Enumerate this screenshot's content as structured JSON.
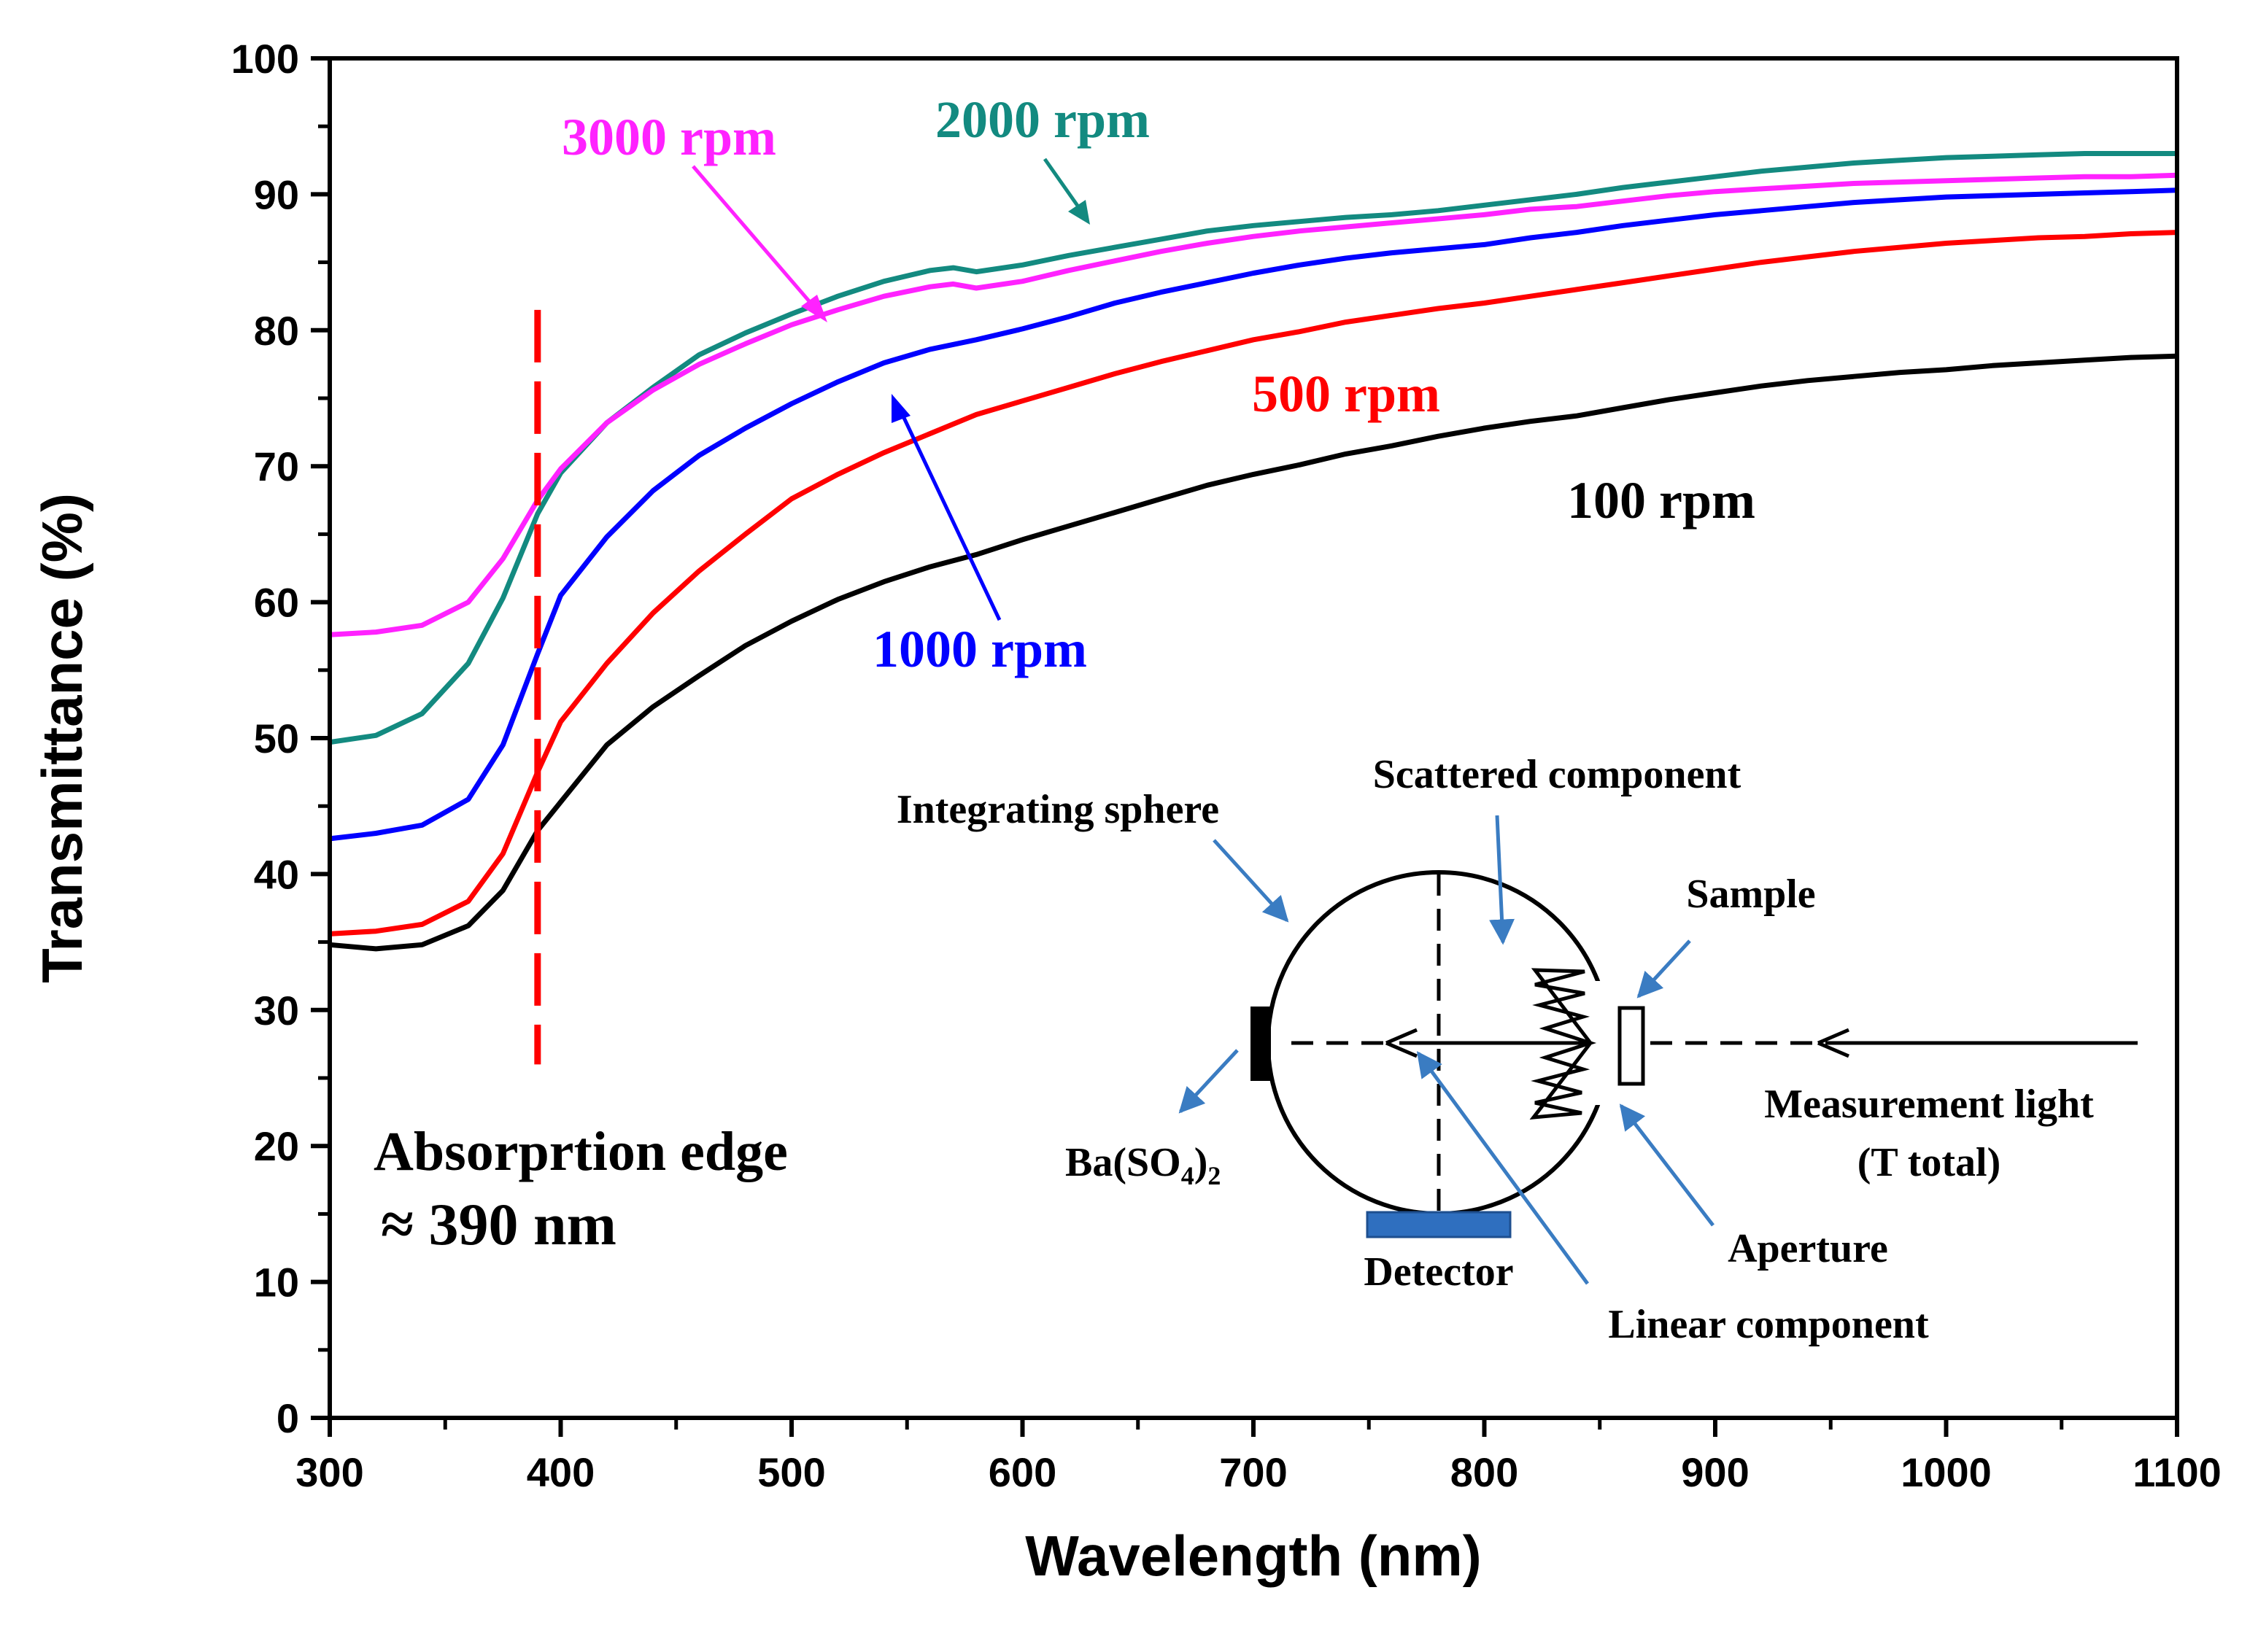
{
  "chart_data": {
    "type": "line",
    "title": "",
    "xlabel": "Wavelength (nm)",
    "ylabel": "Transmittance (%)",
    "xlim": [
      300,
      1100
    ],
    "ylim": [
      0,
      100
    ],
    "x_ticks": [
      "300",
      "400",
      "500",
      "600",
      "700",
      "800",
      "900",
      "1000",
      "1100"
    ],
    "y_ticks": [
      "0",
      "10",
      "20",
      "30",
      "40",
      "50",
      "60",
      "70",
      "80",
      "90",
      "100"
    ],
    "grid": false,
    "series": [
      {
        "name": "100 rpm",
        "color": "#000000",
        "points": [
          [
            300,
            34.8
          ],
          [
            320,
            34.5
          ],
          [
            340,
            34.8
          ],
          [
            360,
            36.2
          ],
          [
            375,
            38.8
          ],
          [
            390,
            43.2
          ],
          [
            400,
            45.3
          ],
          [
            420,
            49.5
          ],
          [
            440,
            52.3
          ],
          [
            460,
            54.6
          ],
          [
            480,
            56.8
          ],
          [
            500,
            58.6
          ],
          [
            520,
            60.2
          ],
          [
            540,
            61.5
          ],
          [
            560,
            62.6
          ],
          [
            580,
            63.5
          ],
          [
            600,
            64.6
          ],
          [
            620,
            65.6
          ],
          [
            640,
            66.6
          ],
          [
            660,
            67.6
          ],
          [
            680,
            68.6
          ],
          [
            700,
            69.4
          ],
          [
            720,
            70.1
          ],
          [
            740,
            70.9
          ],
          [
            760,
            71.5
          ],
          [
            780,
            72.2
          ],
          [
            800,
            72.8
          ],
          [
            820,
            73.3
          ],
          [
            840,
            73.7
          ],
          [
            860,
            74.3
          ],
          [
            880,
            74.9
          ],
          [
            900,
            75.4
          ],
          [
            920,
            75.9
          ],
          [
            940,
            76.3
          ],
          [
            960,
            76.6
          ],
          [
            980,
            76.9
          ],
          [
            1000,
            77.1
          ],
          [
            1020,
            77.4
          ],
          [
            1040,
            77.6
          ],
          [
            1060,
            77.8
          ],
          [
            1080,
            78.0
          ],
          [
            1100,
            78.1
          ]
        ]
      },
      {
        "name": "500 rpm",
        "color": "#ff0000",
        "points": [
          [
            300,
            35.6
          ],
          [
            320,
            35.8
          ],
          [
            340,
            36.3
          ],
          [
            360,
            38.0
          ],
          [
            375,
            41.5
          ],
          [
            390,
            47.5
          ],
          [
            400,
            51.2
          ],
          [
            420,
            55.5
          ],
          [
            440,
            59.2
          ],
          [
            460,
            62.3
          ],
          [
            480,
            65.0
          ],
          [
            500,
            67.6
          ],
          [
            520,
            69.4
          ],
          [
            540,
            71.0
          ],
          [
            560,
            72.4
          ],
          [
            580,
            73.8
          ],
          [
            600,
            74.8
          ],
          [
            620,
            75.8
          ],
          [
            640,
            76.8
          ],
          [
            660,
            77.7
          ],
          [
            680,
            78.5
          ],
          [
            700,
            79.3
          ],
          [
            720,
            79.9
          ],
          [
            740,
            80.6
          ],
          [
            760,
            81.1
          ],
          [
            780,
            81.6
          ],
          [
            800,
            82.0
          ],
          [
            820,
            82.5
          ],
          [
            840,
            83.0
          ],
          [
            860,
            83.5
          ],
          [
            880,
            84.0
          ],
          [
            900,
            84.5
          ],
          [
            920,
            85.0
          ],
          [
            940,
            85.4
          ],
          [
            960,
            85.8
          ],
          [
            980,
            86.1
          ],
          [
            1000,
            86.4
          ],
          [
            1020,
            86.6
          ],
          [
            1040,
            86.8
          ],
          [
            1060,
            86.9
          ],
          [
            1080,
            87.1
          ],
          [
            1100,
            87.2
          ]
        ]
      },
      {
        "name": "1000 rpm",
        "color": "#0000ff",
        "points": [
          [
            300,
            42.6
          ],
          [
            320,
            43.0
          ],
          [
            340,
            43.6
          ],
          [
            360,
            45.5
          ],
          [
            375,
            49.5
          ],
          [
            390,
            56.2
          ],
          [
            400,
            60.5
          ],
          [
            420,
            64.8
          ],
          [
            440,
            68.2
          ],
          [
            460,
            70.8
          ],
          [
            480,
            72.8
          ],
          [
            500,
            74.6
          ],
          [
            520,
            76.2
          ],
          [
            540,
            77.6
          ],
          [
            560,
            78.6
          ],
          [
            580,
            79.3
          ],
          [
            600,
            80.1
          ],
          [
            620,
            81.0
          ],
          [
            640,
            82.0
          ],
          [
            660,
            82.8
          ],
          [
            680,
            83.5
          ],
          [
            700,
            84.2
          ],
          [
            720,
            84.8
          ],
          [
            740,
            85.3
          ],
          [
            760,
            85.7
          ],
          [
            780,
            86.0
          ],
          [
            800,
            86.3
          ],
          [
            820,
            86.8
          ],
          [
            840,
            87.2
          ],
          [
            860,
            87.7
          ],
          [
            880,
            88.1
          ],
          [
            900,
            88.5
          ],
          [
            920,
            88.8
          ],
          [
            940,
            89.1
          ],
          [
            960,
            89.4
          ],
          [
            980,
            89.6
          ],
          [
            1000,
            89.8
          ],
          [
            1020,
            89.9
          ],
          [
            1040,
            90.0
          ],
          [
            1060,
            90.1
          ],
          [
            1080,
            90.2
          ],
          [
            1100,
            90.3
          ]
        ]
      },
      {
        "name": "2000 rpm",
        "color": "#138a80",
        "points": [
          [
            300,
            49.7
          ],
          [
            320,
            50.2
          ],
          [
            340,
            51.8
          ],
          [
            360,
            55.5
          ],
          [
            375,
            60.3
          ],
          [
            390,
            66.5
          ],
          [
            400,
            69.5
          ],
          [
            420,
            73.2
          ],
          [
            440,
            75.8
          ],
          [
            460,
            78.2
          ],
          [
            480,
            79.8
          ],
          [
            500,
            81.2
          ],
          [
            520,
            82.5
          ],
          [
            540,
            83.6
          ],
          [
            560,
            84.4
          ],
          [
            570,
            84.6
          ],
          [
            580,
            84.3
          ],
          [
            600,
            84.8
          ],
          [
            620,
            85.5
          ],
          [
            640,
            86.1
          ],
          [
            660,
            86.7
          ],
          [
            680,
            87.3
          ],
          [
            700,
            87.7
          ],
          [
            720,
            88.0
          ],
          [
            740,
            88.3
          ],
          [
            760,
            88.5
          ],
          [
            780,
            88.8
          ],
          [
            800,
            89.2
          ],
          [
            820,
            89.6
          ],
          [
            840,
            90.0
          ],
          [
            860,
            90.5
          ],
          [
            880,
            90.9
          ],
          [
            900,
            91.3
          ],
          [
            920,
            91.7
          ],
          [
            940,
            92.0
          ],
          [
            960,
            92.3
          ],
          [
            980,
            92.5
          ],
          [
            1000,
            92.7
          ],
          [
            1020,
            92.8
          ],
          [
            1040,
            92.9
          ],
          [
            1060,
            93.0
          ],
          [
            1080,
            93.0
          ],
          [
            1100,
            93.0
          ]
        ]
      },
      {
        "name": "3000 rpm",
        "color": "#ff22ff",
        "points": [
          [
            300,
            57.6
          ],
          [
            320,
            57.8
          ],
          [
            340,
            58.3
          ],
          [
            360,
            60.0
          ],
          [
            375,
            63.2
          ],
          [
            390,
            67.5
          ],
          [
            400,
            69.8
          ],
          [
            420,
            73.2
          ],
          [
            440,
            75.6
          ],
          [
            460,
            77.5
          ],
          [
            480,
            79.0
          ],
          [
            500,
            80.4
          ],
          [
            520,
            81.5
          ],
          [
            540,
            82.5
          ],
          [
            560,
            83.2
          ],
          [
            570,
            83.4
          ],
          [
            580,
            83.1
          ],
          [
            600,
            83.6
          ],
          [
            620,
            84.4
          ],
          [
            640,
            85.1
          ],
          [
            660,
            85.8
          ],
          [
            680,
            86.4
          ],
          [
            700,
            86.9
          ],
          [
            720,
            87.3
          ],
          [
            740,
            87.6
          ],
          [
            760,
            87.9
          ],
          [
            780,
            88.2
          ],
          [
            800,
            88.5
          ],
          [
            820,
            88.9
          ],
          [
            840,
            89.1
          ],
          [
            860,
            89.5
          ],
          [
            880,
            89.9
          ],
          [
            900,
            90.2
          ],
          [
            920,
            90.4
          ],
          [
            940,
            90.6
          ],
          [
            960,
            90.8
          ],
          [
            980,
            90.9
          ],
          [
            1000,
            91.0
          ],
          [
            1020,
            91.1
          ],
          [
            1040,
            91.2
          ],
          [
            1060,
            91.3
          ],
          [
            1080,
            91.3
          ],
          [
            1100,
            91.4
          ]
        ]
      }
    ],
    "annotations": {
      "absorption_edge_line": {
        "x": 390,
        "y_from": 26,
        "y_to": 81.5,
        "color": "#ff0000"
      },
      "absorption_edge_text": [
        "Absorprtion edge",
        "≈ 390 nm"
      ],
      "inset_labels": {
        "integrating_sphere": "Integrating sphere",
        "scattered_component": "Scattered component",
        "sample": "Sample",
        "measurement_light": "Measurement light",
        "t_total": "(T total)",
        "aperture": "Aperture",
        "linear_component": "Linear component",
        "detector": "Detector",
        "baso4_base": "Ba(SO",
        "baso4_sub4": "4",
        "baso4_close": ")",
        "baso4_sub2": "2"
      }
    }
  }
}
